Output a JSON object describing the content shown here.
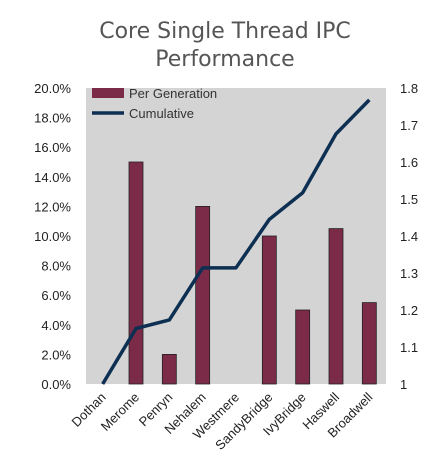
{
  "chart_data": {
    "type": "bar+line",
    "title_line1": "Core Single Thread IPC",
    "title_line2": "Performance",
    "categories": [
      "Dothan",
      "Merome",
      "Penryn",
      "Nehalem",
      "Westmere",
      "SandyBridge",
      "IvyBridge",
      "Haswell",
      "Broadwell"
    ],
    "series": [
      {
        "name": "Per Generation",
        "type": "bar",
        "axis": "left",
        "color": "#7b2a48",
        "values": [
          0.0,
          15.0,
          2.0,
          12.0,
          0.0,
          10.0,
          5.0,
          10.5,
          5.5
        ]
      },
      {
        "name": "Cumulative",
        "type": "line",
        "axis": "right",
        "color": "#0d2f52",
        "values": [
          1.0,
          1.15,
          1.173,
          1.314,
          1.314,
          1.445,
          1.517,
          1.676,
          1.768
        ]
      }
    ],
    "y_left": {
      "min": 0,
      "max": 20,
      "tick_labels": [
        "0.0%",
        "2.0%",
        "4.0%",
        "6.0%",
        "8.0%",
        "10.0%",
        "12.0%",
        "14.0%",
        "16.0%",
        "18.0%",
        "20.0%"
      ]
    },
    "y_right": {
      "min": 1.0,
      "max": 1.8,
      "tick_labels": [
        "1",
        "1.1",
        "1.2",
        "1.3",
        "1.4",
        "1.5",
        "1.6",
        "1.7",
        "1.8"
      ]
    },
    "grid": false,
    "legend_position": "top-left",
    "plot_background": "#d4d4d4"
  }
}
